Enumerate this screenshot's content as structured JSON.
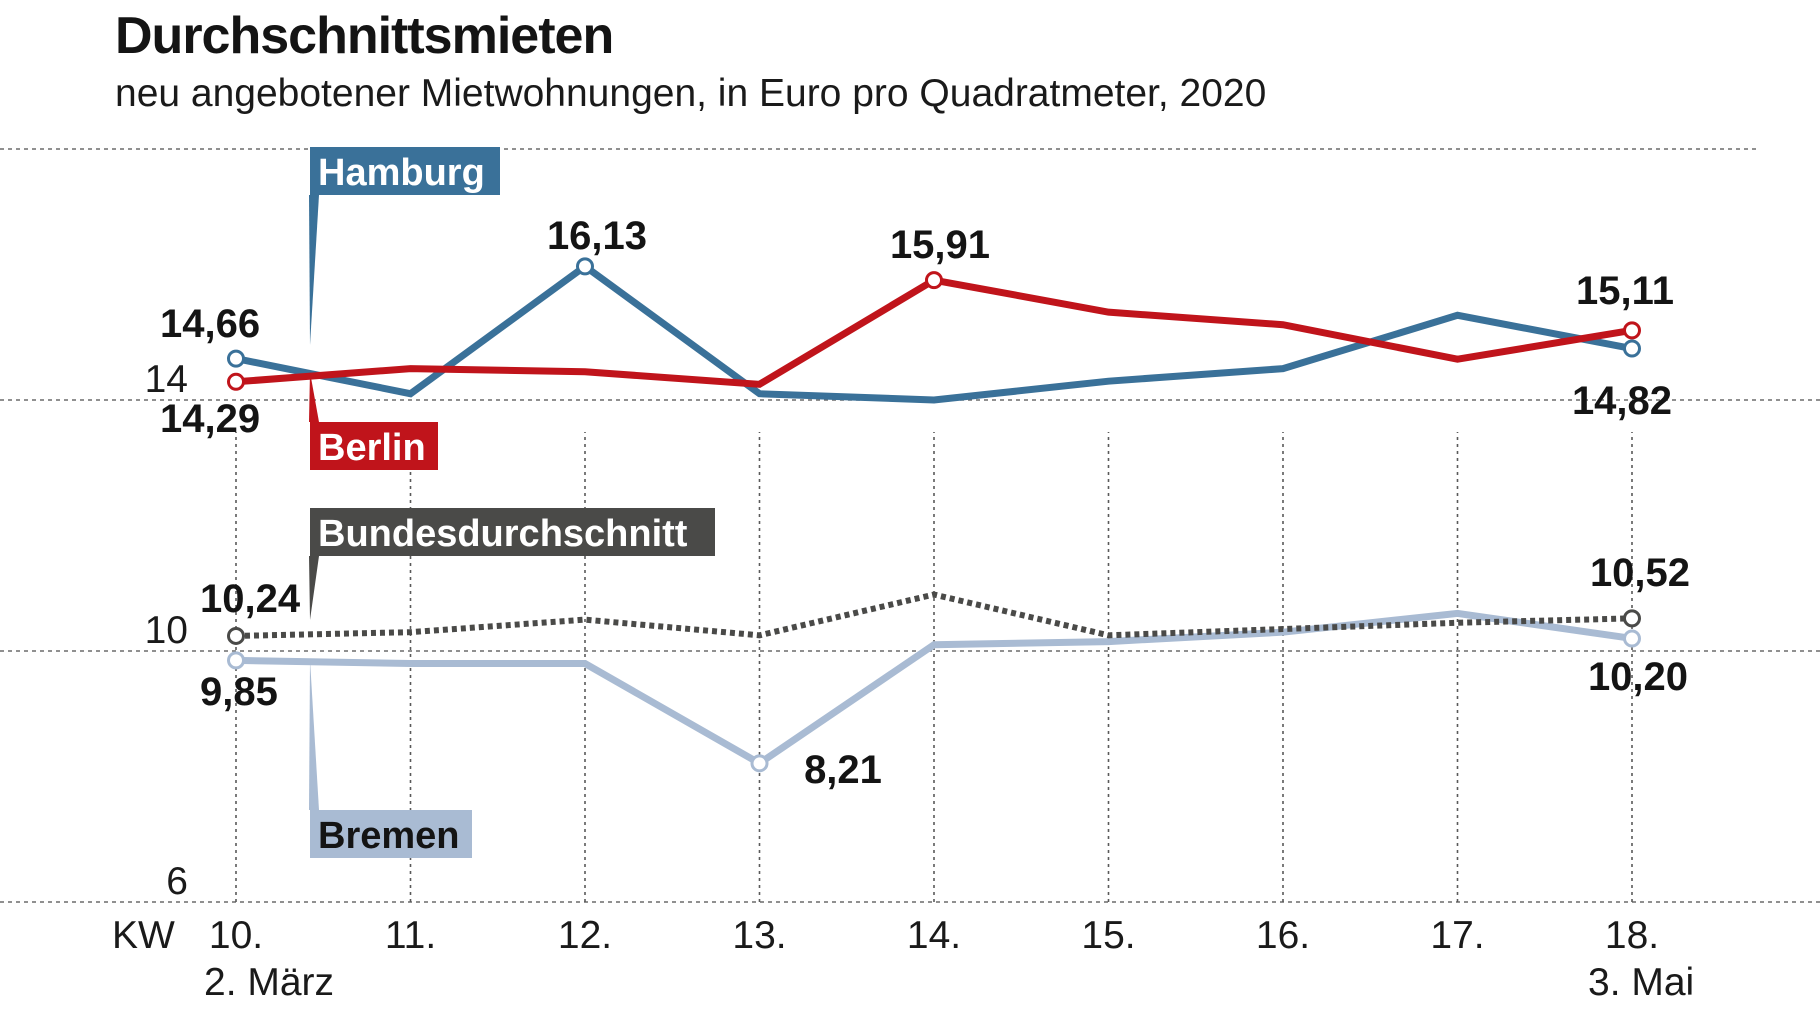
{
  "header": {
    "title": "Durchschnittsmieten",
    "subtitle": "neu angebotener Mietwohnungen, in Euro pro Quadratmeter, 2020"
  },
  "chart_data": {
    "type": "line",
    "title": "Durchschnittsmieten",
    "subtitle": "neu angebotener Mietwohnungen, in Euro pro Quadratmeter, 2020",
    "xlabel": "KW",
    "ylabel": "",
    "x": [
      "10.",
      "11.",
      "12.",
      "13.",
      "14.",
      "15.",
      "16.",
      "17.",
      "18."
    ],
    "x_sublabels": {
      "10.": "2. März",
      "18.": "3. Mai"
    },
    "yticks": [
      6,
      10,
      14
    ],
    "ylim": [
      6,
      18
    ],
    "grid": "horizontal dashed at 6, 10, 14, 18; vertical dotted at each week",
    "series": [
      {
        "name": "Hamburg",
        "color": "#3a7199",
        "values": [
          14.66,
          14.1,
          16.13,
          14.1,
          14.0,
          14.3,
          14.5,
          15.35,
          14.82
        ]
      },
      {
        "name": "Berlin",
        "color": "#c0141b",
        "values": [
          14.29,
          14.5,
          14.45,
          14.25,
          15.91,
          15.4,
          15.2,
          14.65,
          15.11
        ]
      },
      {
        "name": "Bundesdurchschnitt",
        "color": "#4a4a48",
        "dashed": true,
        "values": [
          10.24,
          10.3,
          10.5,
          10.25,
          10.9,
          10.25,
          10.35,
          10.45,
          10.52
        ]
      },
      {
        "name": "Bremen",
        "color": "#a9bbd3",
        "values": [
          9.85,
          9.8,
          9.8,
          8.21,
          10.1,
          10.15,
          10.3,
          10.6,
          10.2
        ]
      }
    ],
    "annotations": [
      {
        "series": "Hamburg",
        "x": "10.",
        "text": "14,66"
      },
      {
        "series": "Berlin",
        "x": "10.",
        "text": "14,29"
      },
      {
        "series": "Hamburg",
        "x": "12.",
        "text": "16,13"
      },
      {
        "series": "Berlin",
        "x": "14.",
        "text": "15,91"
      },
      {
        "series": "Berlin",
        "x": "18.",
        "text": "15,11"
      },
      {
        "series": "Hamburg",
        "x": "18.",
        "text": "14,82"
      },
      {
        "series": "Bundesdurchschnitt",
        "x": "10.",
        "text": "10,24"
      },
      {
        "series": "Bremen",
        "x": "10.",
        "text": "9,85"
      },
      {
        "series": "Bremen",
        "x": "13.",
        "text": "8,21"
      },
      {
        "series": "Bundesdurchschnitt",
        "x": "18.",
        "text": "10,52"
      },
      {
        "series": "Bremen",
        "x": "18.",
        "text": "10,20"
      }
    ]
  }
}
